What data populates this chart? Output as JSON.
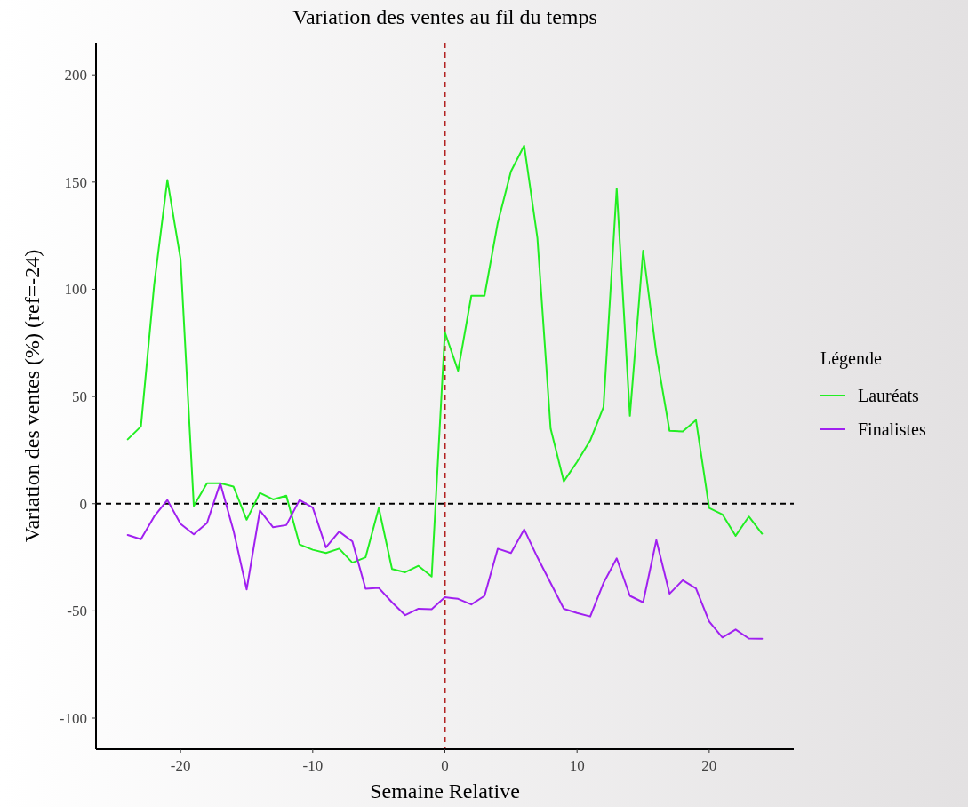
{
  "chart_data": {
    "type": "line",
    "title": "Variation des ventes au fil du temps",
    "xlabel": "Semaine Relative",
    "ylabel": "Variation des ventes (%) (ref=-24)",
    "legend_title": "Légende",
    "legend": "right",
    "grid": false,
    "x": [
      -24,
      -23,
      -22,
      -21,
      -20,
      -19,
      -18,
      -17,
      -16,
      -15,
      -14,
      -13,
      -12,
      -11,
      -10,
      -9,
      -8,
      -7,
      -6,
      -5,
      -4,
      -3,
      -2,
      -1,
      0,
      1,
      2,
      3,
      4,
      5,
      6,
      7,
      8,
      9,
      10,
      11,
      12,
      13,
      14,
      15,
      16,
      17,
      18,
      19,
      20,
      21,
      22,
      23,
      24
    ],
    "series": [
      {
        "name": "Lauréats",
        "color": "#22ee22",
        "values": [
          30,
          36,
          102,
          151,
          114,
          -1,
          9.5,
          9.5,
          8,
          -7.5,
          5,
          2,
          3.7,
          -19,
          -21.5,
          -23,
          -21,
          -27.5,
          -25,
          -2,
          -30.5,
          -32,
          -29,
          -34,
          80,
          62,
          97,
          97,
          131,
          155,
          167,
          124,
          35,
          10.4,
          19.5,
          29.5,
          45,
          147,
          41,
          118,
          70,
          34,
          33.7,
          39,
          -2,
          -5,
          -15,
          -6,
          -14
        ]
      },
      {
        "name": "Finalistes",
        "color": "#a020f0",
        "values": [
          -14.6,
          -16.6,
          -6,
          1.7,
          -9.4,
          -14.3,
          -9,
          9.6,
          -12.5,
          -40,
          -3.2,
          -11,
          -10,
          1.7,
          -1.8,
          -20.4,
          -13,
          -17.6,
          -39.7,
          -39.3,
          -46,
          -52,
          -49,
          -49.2,
          -43.6,
          -44.4,
          -47,
          -43,
          -21,
          -23,
          -12,
          -25,
          -37,
          -49,
          -51,
          -52.6,
          -37,
          -25.5,
          -43,
          -46,
          -17,
          -42,
          -35.7,
          -39.5,
          -55,
          -62.4,
          -58.7,
          -62.9,
          -63
        ]
      }
    ],
    "xlim": [
      -26.4,
      26.4
    ],
    "ylim": [
      -114.5,
      215
    ],
    "xticks": [
      -20,
      -10,
      0,
      10,
      20
    ],
    "yticks": [
      -100,
      -50,
      0,
      50,
      100,
      150,
      200
    ],
    "ref_lines": [
      {
        "axis": "y",
        "value": 0,
        "color": "#000000",
        "line_style": "dashed"
      },
      {
        "axis": "x",
        "value": 0,
        "color": "#b22222",
        "line_style": "dashed"
      }
    ]
  }
}
